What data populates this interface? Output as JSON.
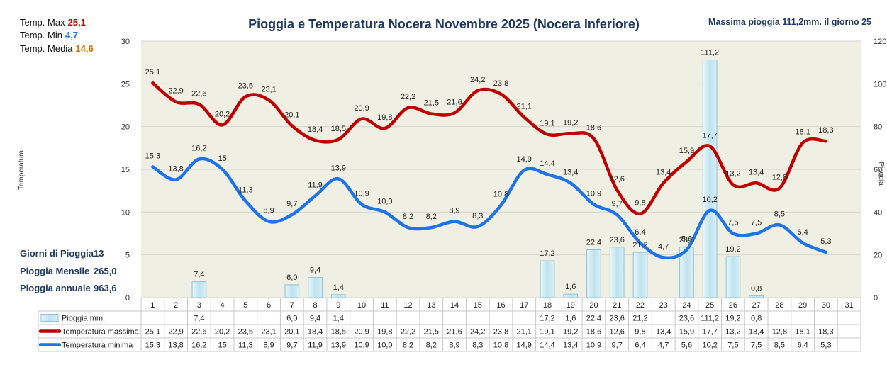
{
  "header": {
    "title": "Pioggia e Temperatura Nocera Novembre 2025 (Nocera Inferiore)",
    "max_rain_note": "Massima pioggia 111,2mm. il giorno 25"
  },
  "summary": {
    "temp_max_label": "Temp. Max",
    "temp_max_value": "25,1",
    "temp_min_label": "Temp.  Min",
    "temp_min_value": "4,7",
    "temp_avg_label": "Temp. Media",
    "temp_avg_value": "14,6",
    "rain_days_label": "Giorni di Pioggia",
    "rain_days_value": "13",
    "rain_month_label": "Pioggia Mensile",
    "rain_month_value": "265,0",
    "rain_year_label": "Pioggia annuale",
    "rain_year_value": "963,6"
  },
  "colors": {
    "max": "#c00000",
    "min": "#1e73e8",
    "avg": "#e07000",
    "rain_fill": "#bfe3ef",
    "rain_stroke": "#8fc0d2",
    "plot_bg": "#f0efe3",
    "title": "#1f3864",
    "grid": "#d6d6d0"
  },
  "chart_data": {
    "type": "bar+line",
    "title": "Pioggia e Temperatura Nocera Novembre 2025 (Nocera Inferiore)",
    "ylabel_left": "Temperatura",
    "ylabel_right": "Pioggia",
    "ylim_left": [
      0,
      30
    ],
    "ylim_right": [
      0,
      120
    ],
    "yticks_left": [
      "0",
      "5",
      "10",
      "15",
      "20",
      "25",
      "30"
    ],
    "yticks_right": [
      "0",
      "20",
      "40",
      "60",
      "80",
      "100",
      "120"
    ],
    "categories": [
      "1",
      "2",
      "3",
      "4",
      "5",
      "6",
      "7",
      "8",
      "9",
      "10",
      "11",
      "12",
      "13",
      "14",
      "15",
      "16",
      "17",
      "18",
      "19",
      "20",
      "21",
      "22",
      "23",
      "24",
      "25",
      "26",
      "27",
      "28",
      "29",
      "30",
      "31"
    ],
    "series": [
      {
        "name": "Pioggia mm.",
        "type": "bar",
        "axis": "right",
        "values": [
          null,
          null,
          7.4,
          null,
          null,
          null,
          6.0,
          9.4,
          1.4,
          null,
          null,
          null,
          null,
          null,
          null,
          null,
          null,
          17.2,
          1.6,
          22.4,
          23.6,
          21.2,
          null,
          23.6,
          111.2,
          19.2,
          0.8,
          null,
          null,
          null,
          null
        ],
        "labels": [
          "",
          "",
          "7,4",
          "",
          "",
          "",
          "6,0",
          "9,4",
          "1,4",
          "",
          "",
          "",
          "",
          "",
          "",
          "",
          "",
          "17,2",
          "1,6",
          "22,4",
          "23,6",
          "21,2",
          "",
          "23,6",
          "111,2",
          "19,2",
          "0,8",
          "",
          "",
          "",
          ""
        ]
      },
      {
        "name": "Temperatura massima",
        "type": "line",
        "axis": "left",
        "values": [
          25.1,
          22.9,
          22.6,
          20.2,
          23.5,
          23.1,
          20.1,
          18.4,
          18.5,
          20.9,
          19.8,
          22.2,
          21.5,
          21.6,
          24.2,
          23.8,
          21.1,
          19.1,
          19.2,
          18.6,
          12.6,
          9.8,
          13.4,
          15.9,
          17.7,
          13.2,
          13.4,
          12.8,
          18.1,
          18.3,
          null
        ],
        "labels": [
          "25,1",
          "22,9",
          "22,6",
          "20,2",
          "23,5",
          "23,1",
          "20,1",
          "18,4",
          "18,5",
          "20,9",
          "19,8",
          "22,2",
          "21,5",
          "21,6",
          "24,2",
          "23,8",
          "21,1",
          "19,1",
          "19,2",
          "18,6",
          "12,6",
          "9,8",
          "13,4",
          "15,9",
          "17,7",
          "13,2",
          "13,4",
          "12,8",
          "18,1",
          "18,3",
          ""
        ]
      },
      {
        "name": "Temperatura minima",
        "type": "line",
        "axis": "left",
        "values": [
          15.3,
          13.8,
          16.2,
          15.0,
          11.3,
          8.9,
          9.7,
          11.9,
          13.9,
          10.9,
          10.0,
          8.2,
          8.2,
          8.9,
          8.3,
          10.8,
          14.9,
          14.4,
          13.4,
          10.9,
          9.7,
          6.4,
          4.7,
          5.6,
          10.2,
          7.5,
          7.5,
          8.5,
          6.4,
          5.3,
          null
        ],
        "labels": [
          "15,3",
          "13,8",
          "16,2",
          "15",
          "11,3",
          "8,9",
          "9,7",
          "11,9",
          "13,9",
          "10,9",
          "10,0",
          "8,2",
          "8,2",
          "8,9",
          "8,3",
          "10,8",
          "14,9",
          "14,4",
          "13,4",
          "10,9",
          "9,7",
          "6,4",
          "4,7",
          "5,6",
          "10,2",
          "7,5",
          "7,5",
          "8,5",
          "6,4",
          "5,3",
          ""
        ]
      }
    ],
    "table": {
      "row_labels": [
        "Pioggia mm.",
        "Temperatura massima",
        "Temperatura minima"
      ],
      "rows": [
        [
          "",
          "",
          "7,4",
          "",
          "",
          "",
          "6,0",
          "9,4",
          "1,4",
          "",
          "",
          "",
          "",
          "",
          "",
          "",
          "",
          "17,2",
          "1,6",
          "22,4",
          "23,6",
          "21,2",
          "",
          "23,6",
          "111,2",
          "19,2",
          "0,8",
          "",
          "",
          "",
          ""
        ],
        [
          "25,1",
          "22,9",
          "22,6",
          "20,2",
          "23,5",
          "23,1",
          "20,1",
          "18,4",
          "18,5",
          "20,9",
          "19,8",
          "22,2",
          "21,5",
          "21,6",
          "24,2",
          "23,8",
          "21,1",
          "19,1",
          "19,2",
          "18,6",
          "12,6",
          "9,8",
          "13,4",
          "15,9",
          "17,7",
          "13,2",
          "13,4",
          "12,8",
          "18,1",
          "18,3",
          ""
        ],
        [
          "15,3",
          "13,8",
          "16,2",
          "15",
          "11,3",
          "8,9",
          "9,7",
          "11,9",
          "13,9",
          "10,9",
          "10,0",
          "8,2",
          "8,2",
          "8,9",
          "8,3",
          "10,8",
          "14,9",
          "14,4",
          "13,4",
          "10,9",
          "9,7",
          "6,4",
          "4,7",
          "5,6",
          "10,2",
          "7,5",
          "7,5",
          "8,5",
          "6,4",
          "5,3",
          ""
        ]
      ]
    }
  }
}
